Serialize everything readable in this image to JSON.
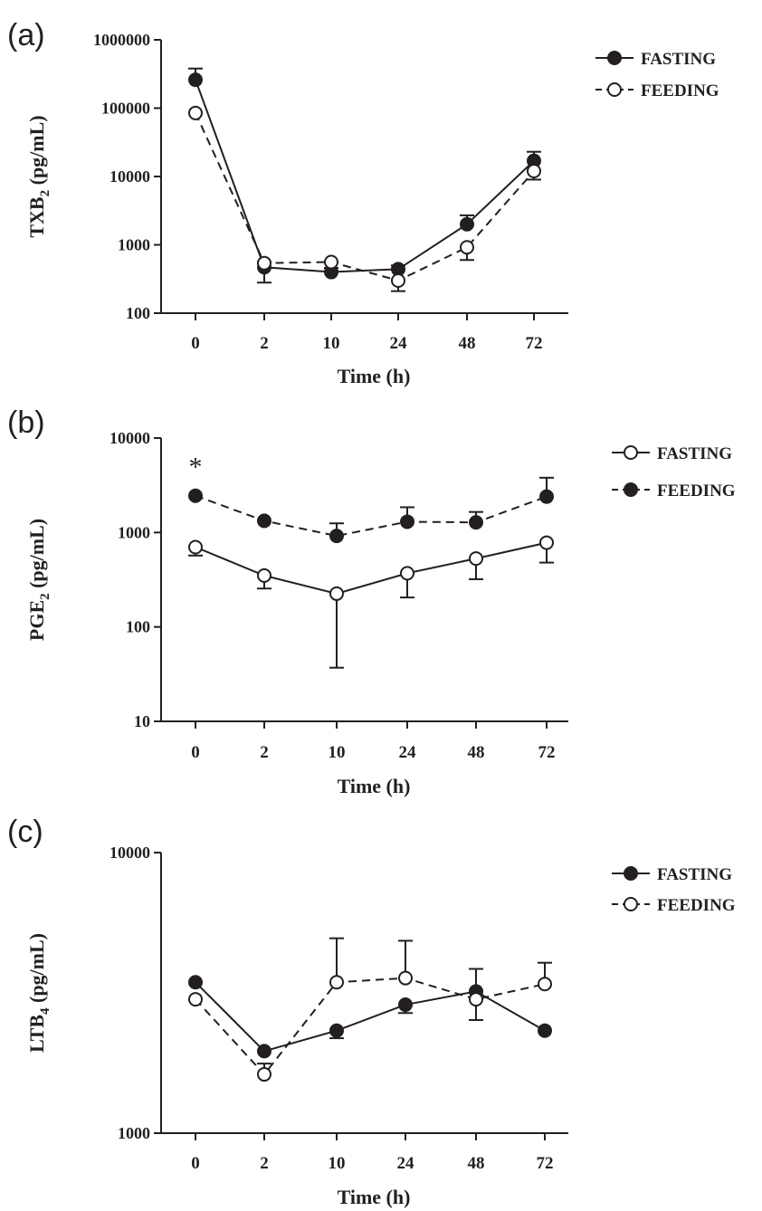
{
  "chart_data": [
    {
      "type": "line",
      "panel_label": "(a)",
      "ylabel": "TXB2 (pg/mL)",
      "ylabel_main": "TXB",
      "ylabel_sub": "2",
      "ylabel_unit": " (pg/mL)",
      "xlabel": "Time (h)",
      "categories": [
        "0",
        "2",
        "10",
        "24",
        "48",
        "72"
      ],
      "y_scale": "log",
      "ylim": [
        100,
        1000000
      ],
      "y_ticks": [
        100,
        1000,
        10000,
        100000,
        1000000
      ],
      "y_tick_labels": [
        "100",
        "1000",
        "10000",
        "100000",
        "1000000"
      ],
      "legend_position": "top-right",
      "annotations": [],
      "series": [
        {
          "name": "FASTING",
          "marker": "filled",
          "line": "solid",
          "values": [
            260000,
            470,
            400,
            440,
            2000,
            17000
          ],
          "error_upper": [
            380000,
            560,
            460,
            500,
            2700,
            23000
          ],
          "error_lower": [
            null,
            280,
            null,
            null,
            null,
            null
          ]
        },
        {
          "name": "FEEDING",
          "marker": "open",
          "line": "dashed",
          "values": [
            85000,
            540,
            560,
            300,
            920,
            12000
          ],
          "error_upper": [
            null,
            null,
            null,
            null,
            null,
            null
          ],
          "error_lower": [
            null,
            null,
            null,
            210,
            600,
            9000
          ]
        }
      ]
    },
    {
      "type": "line",
      "panel_label": "(b)",
      "ylabel": "PGE2 (pg/mL)",
      "ylabel_main": "PGE",
      "ylabel_sub": "2",
      "ylabel_unit": " (pg/mL)",
      "xlabel": "Time (h)",
      "categories": [
        "0",
        "2",
        "10",
        "24",
        "48",
        "72"
      ],
      "y_scale": "log",
      "ylim": [
        10,
        10000
      ],
      "y_ticks": [
        10,
        100,
        1000,
        10000
      ],
      "y_tick_labels": [
        "10",
        "100",
        "1000",
        "10000"
      ],
      "legend_position": "top-right",
      "annotations": [
        {
          "text": "*",
          "category": "0"
        }
      ],
      "series": [
        {
          "name": "FASTING",
          "marker": "open",
          "line": "solid",
          "values": [
            700,
            350,
            225,
            370,
            530,
            780
          ],
          "error_upper": [
            null,
            null,
            null,
            null,
            null,
            null
          ],
          "error_lower": [
            570,
            255,
            37,
            205,
            320,
            480
          ]
        },
        {
          "name": "FEEDING",
          "marker": "filled",
          "line": "dashed",
          "values": [
            2450,
            1330,
            920,
            1300,
            1280,
            2400
          ],
          "error_upper": [
            null,
            null,
            1250,
            1850,
            1650,
            3800
          ],
          "error_lower": [
            null,
            null,
            null,
            null,
            null,
            null
          ]
        }
      ]
    },
    {
      "type": "line",
      "panel_label": "(c)",
      "ylabel": "LTB4 (pg/mL)",
      "ylabel_main": "LTB",
      "ylabel_sub": "4",
      "ylabel_unit": " (pg/mL)",
      "xlabel": "Time (h)",
      "categories": [
        "0",
        "2",
        "10",
        "24",
        "48",
        "72"
      ],
      "y_scale": "log",
      "ylim": [
        1000,
        10000
      ],
      "y_ticks": [
        1000,
        10000
      ],
      "y_tick_labels": [
        "1000",
        "10000"
      ],
      "legend_position": "top-right",
      "annotations": [],
      "series": [
        {
          "name": "FASTING",
          "marker": "filled",
          "line": "solid",
          "values": [
            3450,
            1960,
            2320,
            2870,
            3200,
            2320
          ],
          "error_upper": [
            null,
            null,
            null,
            null,
            3850,
            null
          ],
          "error_lower": [
            null,
            null,
            2180,
            2680,
            null,
            null
          ]
        },
        {
          "name": "FEEDING",
          "marker": "open",
          "line": "dashed",
          "values": [
            3000,
            1620,
            3450,
            3570,
            3000,
            3400
          ],
          "error_upper": [
            null,
            1770,
            4950,
            4850,
            null,
            4050
          ],
          "error_lower": [
            null,
            null,
            null,
            null,
            2530,
            null
          ]
        }
      ]
    }
  ]
}
